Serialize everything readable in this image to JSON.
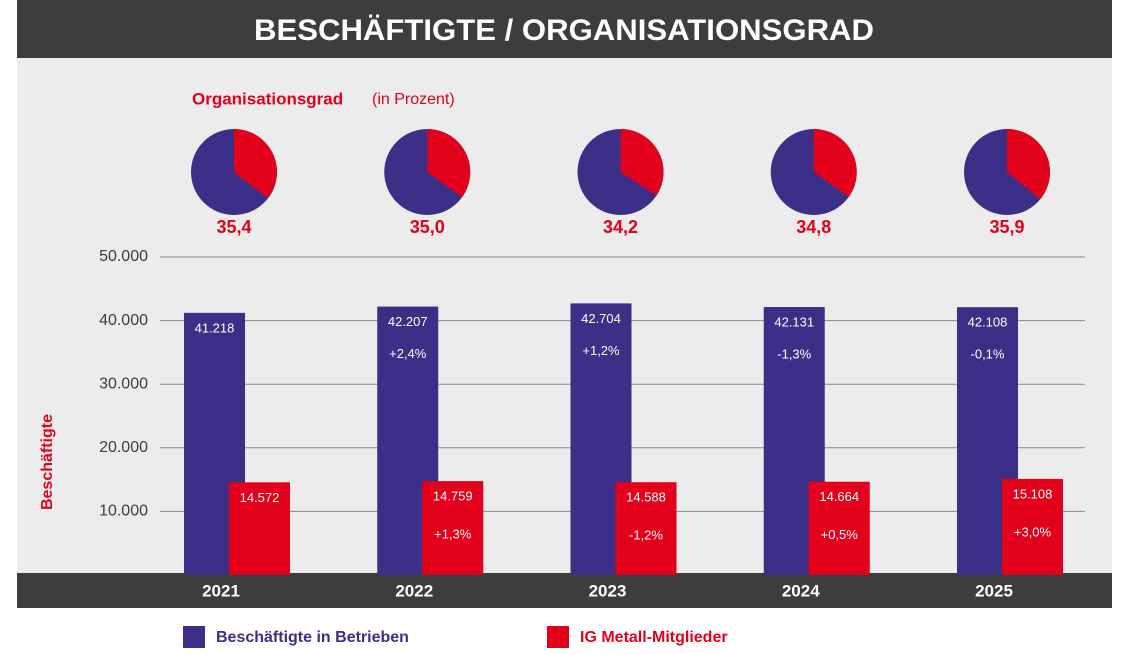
{
  "chart_data": {
    "type": "bar",
    "title": "BESCHÄFTIGTE / ORGANISATIONSGRAD",
    "y_label": "Beschäftigte",
    "categories": [
      "2021",
      "2022",
      "2023",
      "2024",
      "2025"
    ],
    "series": [
      {
        "name": "Beschäftigte in Betrieben",
        "color": "#3b2f87",
        "values": [
          41218,
          42207,
          42704,
          42131,
          42108
        ],
        "value_labels": [
          "41.218",
          "42.207",
          "42.704",
          "42.131",
          "42.108"
        ],
        "change_labels": [
          null,
          "+2,4%",
          "+1,2%",
          "-1,3%",
          "-0,1%"
        ]
      },
      {
        "name": "IG Metall-Mitglieder",
        "color": "#e2001a",
        "values": [
          14572,
          14759,
          14588,
          14664,
          15108
        ],
        "value_labels": [
          "14.572",
          "14.759",
          "14.588",
          "14.664",
          "15.108"
        ],
        "change_labels": [
          null,
          "+1,3%",
          "-1,2%",
          "+0,5%",
          "+3,0%"
        ]
      }
    ],
    "ylim": [
      0,
      50000
    ],
    "yticks": [
      {
        "value": 10000,
        "label": "10.000"
      },
      {
        "value": 20000,
        "label": "20.000"
      },
      {
        "value": 30000,
        "label": "30.000"
      },
      {
        "value": 40000,
        "label": "40.000"
      },
      {
        "value": 50000,
        "label": "50.000"
      }
    ],
    "grid": true,
    "pies": {
      "title": "Organisationsgrad",
      "subtitle": "(in Prozent)",
      "values": [
        35.4,
        35.0,
        34.2,
        34.8,
        35.9
      ],
      "value_labels": [
        "35,4",
        "35,0",
        "34,2",
        "34,8",
        "35,9"
      ],
      "total": 100
    }
  }
}
